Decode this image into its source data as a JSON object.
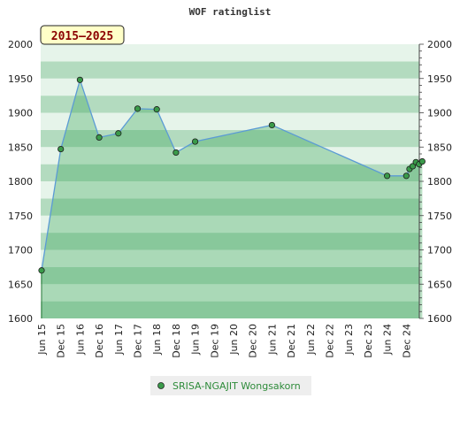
{
  "chart_data": {
    "type": "area",
    "title": "WOF ratinglist",
    "period_label": "2015–2025",
    "xlabel": "",
    "ylabel": "",
    "ylim": [
      1600,
      2000
    ],
    "y_ticks": [
      1600,
      1650,
      1700,
      1750,
      1800,
      1850,
      1900,
      1950,
      2000
    ],
    "x_ticks": [
      "Jun 15",
      "Dec 15",
      "Jun 16",
      "Dec 16",
      "Jun 17",
      "Dec 17",
      "Jun 18",
      "Dec 18",
      "Jun 19",
      "Dec 19",
      "Jun 20",
      "Dec 20",
      "Jun 21",
      "Dec 21",
      "Jun 22",
      "Dec 22",
      "Jun 23",
      "Dec 23",
      "Jun 24",
      "Dec 24"
    ],
    "grid": true,
    "legend_position": "bottom-center",
    "series": [
      {
        "name": "SRISA-NGAJIT Wongsakorn",
        "color": "#5b9bd5",
        "marker_color": "#3a9a4a",
        "points": [
          {
            "x": "2015-06",
            "y": 1670
          },
          {
            "x": "2015-12",
            "y": 1847
          },
          {
            "x": "2016-06",
            "y": 1948
          },
          {
            "x": "2016-12",
            "y": 1864
          },
          {
            "x": "2017-06",
            "y": 1870
          },
          {
            "x": "2017-12",
            "y": 1906
          },
          {
            "x": "2018-06",
            "y": 1905
          },
          {
            "x": "2018-12",
            "y": 1842
          },
          {
            "x": "2019-06",
            "y": 1858
          },
          {
            "x": "2021-06",
            "y": 1882
          },
          {
            "x": "2024-06",
            "y": 1808
          },
          {
            "x": "2024-12",
            "y": 1808
          },
          {
            "x": "2025-01",
            "y": 1818
          },
          {
            "x": "2025-02",
            "y": 1822
          },
          {
            "x": "2025-03",
            "y": 1828
          },
          {
            "x": "2025-04",
            "y": 1825
          },
          {
            "x": "2025-05",
            "y": 1829
          }
        ]
      }
    ]
  },
  "colors": {
    "band_dark": "#b3dbbf",
    "band_light": "#e6f4ea",
    "area_fill": "#3aa55a",
    "line": "#5b9bd5",
    "period_bg": "#ffffc8",
    "legend_bg": "#eeeeee"
  }
}
